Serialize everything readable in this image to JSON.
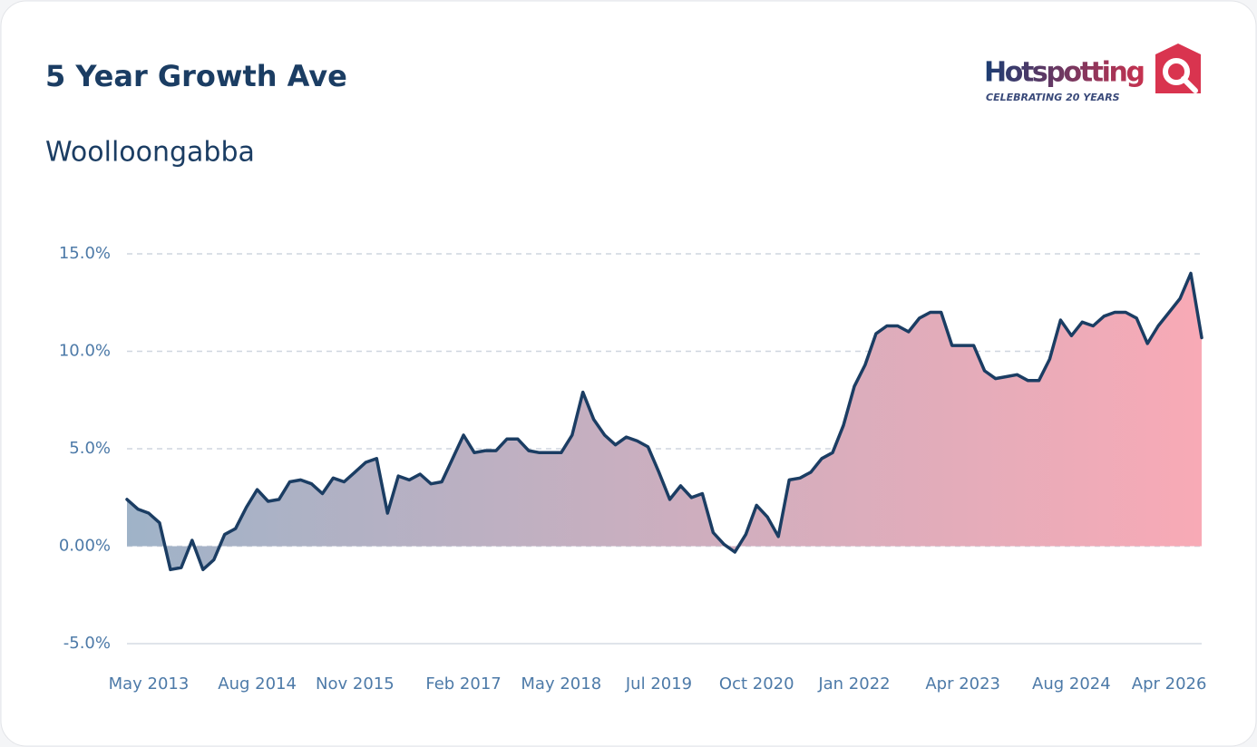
{
  "logo": {
    "name": "Hotspotting",
    "tagline": "CELEBRATING 20 YEARS"
  },
  "chart_data": {
    "type": "area",
    "title": "5 Year Growth Ave",
    "subtitle": "Woolloongabba",
    "categories": [
      null,
      null,
      "May 2013",
      null,
      null,
      null,
      null,
      null,
      null,
      null,
      null,
      null,
      "Aug 2014",
      null,
      null,
      null,
      null,
      null,
      null,
      null,
      null,
      "Nov 2015",
      null,
      null,
      null,
      null,
      null,
      null,
      null,
      null,
      null,
      "Feb 2017",
      null,
      null,
      null,
      null,
      null,
      null,
      null,
      null,
      "May 2018",
      null,
      null,
      null,
      null,
      null,
      null,
      null,
      null,
      "Jul 2019",
      null,
      null,
      null,
      null,
      null,
      null,
      null,
      null,
      "Oct 2020",
      null,
      null,
      null,
      null,
      null,
      null,
      null,
      null,
      "Jan 2022",
      null,
      null,
      null,
      null,
      null,
      null,
      null,
      null,
      null,
      "Apr 2023",
      null,
      null,
      null,
      null,
      null,
      null,
      null,
      null,
      null,
      "Aug 2024",
      null,
      null,
      null,
      null,
      null,
      null,
      null,
      null,
      "Apr 2026",
      null,
      null,
      null
    ],
    "series": [
      {
        "name": "Woolloongabba",
        "color": "#1b3d63",
        "values": [
          2.4,
          1.9,
          1.7,
          1.2,
          -1.2,
          -1.1,
          0.3,
          -1.2,
          -0.7,
          0.6,
          0.9,
          2.0,
          2.9,
          2.3,
          2.4,
          3.3,
          3.4,
          3.2,
          2.7,
          3.5,
          3.3,
          3.8,
          4.3,
          4.5,
          1.7,
          3.6,
          3.4,
          3.7,
          3.2,
          3.3,
          4.5,
          5.7,
          4.8,
          4.9,
          4.9,
          5.5,
          5.5,
          4.9,
          4.8,
          4.8,
          4.8,
          5.7,
          7.9,
          6.5,
          5.7,
          5.2,
          5.6,
          5.4,
          5.1,
          3.8,
          2.4,
          3.1,
          2.5,
          2.7,
          0.7,
          0.1,
          -0.3,
          0.6,
          2.1,
          1.5,
          0.5,
          3.4,
          3.5,
          3.8,
          4.5,
          4.8,
          6.2,
          8.2,
          9.3,
          10.9,
          11.3,
          11.3,
          11.0,
          11.7,
          12.0,
          12.0,
          10.3,
          10.3,
          10.3,
          9.0,
          8.6,
          8.7,
          8.8,
          8.5,
          8.5,
          9.6,
          11.6,
          10.8,
          11.5,
          11.3,
          11.8,
          12.0,
          12.0,
          11.7,
          10.4,
          11.3,
          12.0,
          12.7,
          14.0,
          10.7
        ]
      }
    ],
    "fill_gradient": [
      "#9fb3c8",
      "#f8aab6"
    ],
    "ylim": [
      -5,
      15
    ],
    "yticks": [
      {
        "value": -5,
        "label": "-5.0%"
      },
      {
        "value": 0,
        "label": "0.00%"
      },
      {
        "value": 5,
        "label": "5.0%"
      },
      {
        "value": 10,
        "label": "10.0%"
      },
      {
        "value": 15,
        "label": "15.0%"
      }
    ],
    "grid": true
  }
}
